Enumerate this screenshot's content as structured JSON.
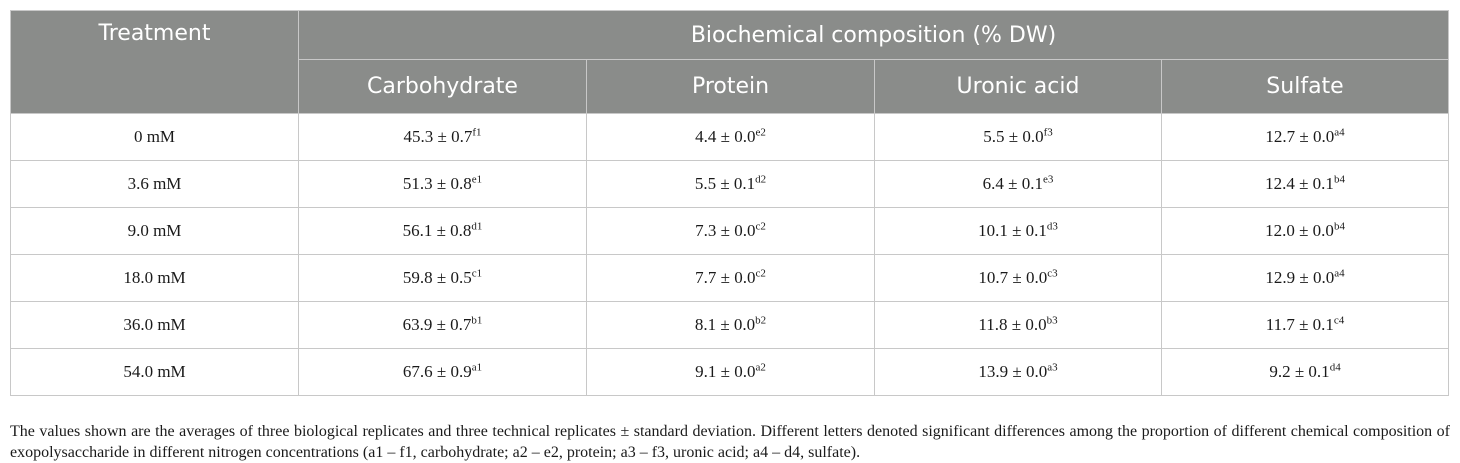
{
  "table": {
    "header": {
      "treatment": "Treatment",
      "group": "Biochemical composition (% DW)",
      "columns": [
        "Carbohydrate",
        "Protein",
        "Uronic acid",
        "Sulfate"
      ]
    },
    "rows": [
      {
        "treatment": "0 mM",
        "cells": [
          {
            "value": "45.3 ± 0.7",
            "sup": "f1"
          },
          {
            "value": "4.4 ± 0.0",
            "sup": "e2"
          },
          {
            "value": "5.5 ± 0.0",
            "sup": "f3"
          },
          {
            "value": "12.7 ± 0.0",
            "sup": "a4"
          }
        ]
      },
      {
        "treatment": "3.6 mM",
        "cells": [
          {
            "value": "51.3 ± 0.8",
            "sup": "e1"
          },
          {
            "value": "5.5 ± 0.1",
            "sup": "d2"
          },
          {
            "value": "6.4 ± 0.1",
            "sup": "e3"
          },
          {
            "value": "12.4 ± 0.1",
            "sup": "b4"
          }
        ]
      },
      {
        "treatment": "9.0 mM",
        "cells": [
          {
            "value": "56.1 ± 0.8",
            "sup": "d1"
          },
          {
            "value": "7.3 ± 0.0",
            "sup": "c2"
          },
          {
            "value": "10.1 ± 0.1",
            "sup": "d3"
          },
          {
            "value": "12.0 ± 0.0",
            "sup": "b4"
          }
        ]
      },
      {
        "treatment": "18.0 mM",
        "cells": [
          {
            "value": "59.8 ± 0.5",
            "sup": "c1"
          },
          {
            "value": "7.7 ± 0.0",
            "sup": "c2"
          },
          {
            "value": "10.7 ± 0.0",
            "sup": "c3"
          },
          {
            "value": "12.9 ± 0.0",
            "sup": "a4"
          }
        ]
      },
      {
        "treatment": "36.0 mM",
        "cells": [
          {
            "value": "63.9 ± 0.7",
            "sup": "b1"
          },
          {
            "value": "8.1 ± 0.0",
            "sup": "b2"
          },
          {
            "value": "11.8 ± 0.0",
            "sup": "b3"
          },
          {
            "value": "11.7 ± 0.1",
            "sup": "c4"
          }
        ]
      },
      {
        "treatment": "54.0 mM",
        "cells": [
          {
            "value": "67.6 ± 0.9",
            "sup": "a1"
          },
          {
            "value": "9.1 ± 0.0",
            "sup": "a2"
          },
          {
            "value": "13.9 ± 0.0",
            "sup": "a3"
          },
          {
            "value": "9.2 ± 0.1",
            "sup": "d4"
          }
        ]
      }
    ]
  },
  "footnote": "The values shown are the averages of three biological replicates and three technical replicates ± standard deviation. Different letters denoted significant differences among the proportion of different chemical composition of exopolysaccharide in different nitrogen concentrations (a1 – f1, carbohydrate; a2 – e2, protein; a3 – f3, uronic acid; a4 – d4, sulfate).",
  "colors": {
    "header_bg": "#8a8c8a",
    "header_text": "#ffffff",
    "grid": "#c8c8c8"
  }
}
